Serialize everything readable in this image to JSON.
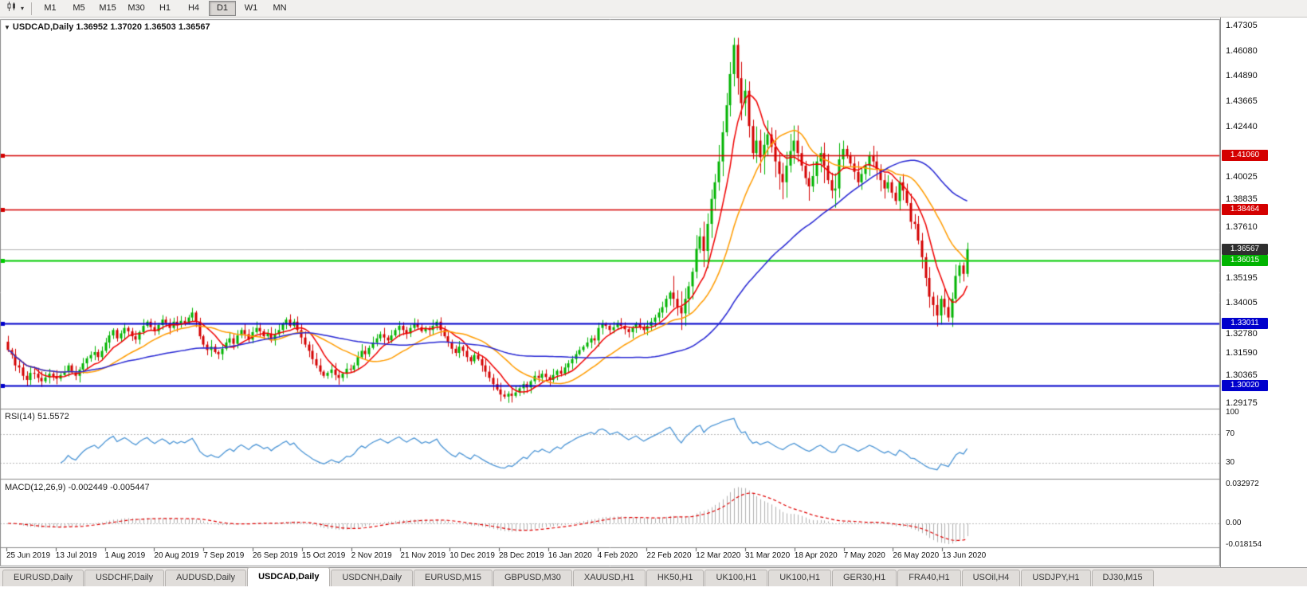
{
  "toolbar": {
    "chart_icon": "candlestick-chart",
    "dropdown_arrow": "▾",
    "timeframes": [
      "M1",
      "M5",
      "M15",
      "M30",
      "H1",
      "H4",
      "D1",
      "W1",
      "MN"
    ],
    "active_timeframe": "D1"
  },
  "chart": {
    "collapse_arrow": "▼",
    "title": "USDCAD,Daily",
    "ohlc": "1.36952 1.37020 1.36503 1.36567"
  },
  "price_axis": {
    "labels": [
      {
        "text": "1.47305",
        "price": 1.47305
      },
      {
        "text": "1.46080",
        "price": 1.4608
      },
      {
        "text": "1.44890",
        "price": 1.4489
      },
      {
        "text": "1.43665",
        "price": 1.43665
      },
      {
        "text": "1.42440",
        "price": 1.4244
      },
      {
        "text": "1.40025",
        "price": 1.40025
      },
      {
        "text": "1.38835",
        "price": 1.38835
      },
      {
        "text": "1.37610",
        "price": 1.3761
      },
      {
        "text": "1.35195",
        "price": 1.35195
      },
      {
        "text": "1.34005",
        "price": 1.34005
      },
      {
        "text": "1.32780",
        "price": 1.3278
      },
      {
        "text": "1.31590",
        "price": 1.3159
      },
      {
        "text": "1.30365",
        "price": 1.30365
      },
      {
        "text": "1.29175",
        "price": 1.29175
      }
    ],
    "badges": [
      {
        "text": "1.41060",
        "price": 1.4106,
        "color": "#d40000"
      },
      {
        "text": "1.38464",
        "price": 1.38464,
        "color": "#d40000"
      },
      {
        "text": "1.36567",
        "price": 1.36567,
        "color": "#2f2f2f"
      },
      {
        "text": "1.36015",
        "price": 1.36015,
        "color": "#00b400"
      },
      {
        "text": "1.33011",
        "price": 1.33011,
        "color": "#0000cc"
      },
      {
        "text": "1.30020",
        "price": 1.3002,
        "color": "#0000cc"
      }
    ]
  },
  "chart_data": {
    "type": "candlestick",
    "symbol": "USDCAD",
    "timeframe": "Daily",
    "ohlc_display": {
      "open": "1.36952",
      "high": "1.37020",
      "low": "1.36503",
      "close": "1.36567"
    },
    "price_range": [
      1.2894,
      1.4758
    ],
    "x_labels": [
      "25 Jun 2019",
      "13 Jul 2019",
      "1 Aug 2019",
      "20 Aug 2019",
      "7 Sep 2019",
      "26 Sep 2019",
      "15 Oct 2019",
      "2 Nov 2019",
      "21 Nov 2019",
      "10 Dec 2019",
      "28 Dec 2019",
      "16 Jan 2020",
      "4 Feb 2020",
      "22 Feb 2020",
      "12 Mar 2020",
      "31 Mar 2020",
      "18 Apr 2020",
      "7 May 2020",
      "26 May 2020",
      "13 Jun 2020"
    ],
    "closes": [
      1.3172,
      1.315,
      1.3098,
      1.3088,
      1.3048,
      1.3028,
      1.3062,
      1.3058,
      1.3038,
      1.3022,
      1.304,
      1.3058,
      1.3044,
      1.3034,
      1.3052,
      1.3068,
      1.3098,
      1.3064,
      1.3048,
      1.3078,
      1.3108,
      1.3132,
      1.3148,
      1.3162,
      1.3138,
      1.3168,
      1.3208,
      1.3242,
      1.3268,
      1.3228,
      1.3252,
      1.3278,
      1.3262,
      1.3238,
      1.3222,
      1.3258,
      1.3288,
      1.3308,
      1.3282,
      1.3262,
      1.3292,
      1.3318,
      1.3302,
      1.3278,
      1.3308,
      1.3292,
      1.3312,
      1.3302,
      1.3328,
      1.3352,
      1.3308,
      1.3238,
      1.3198,
      1.3172,
      1.3188,
      1.3162,
      1.3152,
      1.3178,
      1.3208,
      1.3228,
      1.3202,
      1.3242,
      1.3268,
      1.3248,
      1.3222,
      1.3258,
      1.3278,
      1.3262,
      1.3238,
      1.3252,
      1.3218,
      1.3248,
      1.3268,
      1.3298,
      1.3318,
      1.3288,
      1.3308,
      1.3268,
      1.3232,
      1.3198,
      1.3168,
      1.3128,
      1.3098,
      1.3068,
      1.3048,
      1.3062,
      1.3078,
      1.3052,
      1.3038,
      1.3058,
      1.3082,
      1.3078,
      1.3098,
      1.3138,
      1.3168,
      1.3152,
      1.3182,
      1.3208,
      1.3228,
      1.3248,
      1.3232,
      1.3218,
      1.3242,
      1.3268,
      1.3288,
      1.3268,
      1.3252,
      1.3278,
      1.3298,
      1.3282,
      1.3262,
      1.3278,
      1.3268,
      1.3288,
      1.3308,
      1.3268,
      1.3238,
      1.3208,
      1.3178,
      1.3158,
      1.3188,
      1.3168,
      1.3138,
      1.3118,
      1.3148,
      1.3128,
      1.3098,
      1.3068,
      1.3038,
      1.3008,
      1.2982,
      1.2958,
      1.2948,
      1.2962,
      1.2952,
      1.2968,
      1.2988,
      1.3008,
      1.2992,
      1.3022,
      1.3048,
      1.3038,
      1.3058,
      1.3042,
      1.3028,
      1.3052,
      1.3072,
      1.3058,
      1.3088,
      1.3108,
      1.3128,
      1.3152,
      1.3172,
      1.3188,
      1.3208,
      1.3228,
      1.3218,
      1.3278,
      1.3298,
      1.3288,
      1.3268,
      1.3282,
      1.3302,
      1.3288,
      1.3272,
      1.3258,
      1.3278,
      1.3298,
      1.3282,
      1.3268,
      1.3288,
      1.3308,
      1.3328,
      1.3352,
      1.3378,
      1.3418,
      1.3448,
      1.3418,
      1.3378,
      1.3348,
      1.3418,
      1.3478,
      1.3548,
      1.3658,
      1.3718,
      1.3648,
      1.3778,
      1.3898,
      1.3978,
      1.4078,
      1.4218,
      1.4348,
      1.4498,
      1.4638,
      1.4478,
      1.4358,
      1.4418,
      1.4248,
      1.4118,
      1.4178,
      1.4098,
      1.4158,
      1.4208,
      1.4148,
      1.4078,
      1.4018,
      1.3978,
      1.4058,
      1.4128,
      1.4178,
      1.4118,
      1.4058,
      1.3998,
      1.3958,
      1.4008,
      1.4078,
      1.4118,
      1.4058,
      1.3988,
      1.3938,
      1.3948,
      1.4088,
      1.4138,
      1.4108,
      1.4068,
      1.4028,
      1.3978,
      1.4018,
      1.4058,
      1.4108,
      1.4078,
      1.4038,
      1.3988,
      1.3948,
      1.3978,
      1.3928,
      1.3888,
      1.3978,
      1.3938,
      1.3878,
      1.3788,
      1.3778,
      1.3698,
      1.3618,
      1.3518,
      1.3428,
      1.3388,
      1.3338,
      1.3418,
      1.3378,
      1.3328,
      1.3418,
      1.3528,
      1.3578,
      1.3538,
      1.36567
    ],
    "up_color": "#00b400",
    "down_color": "#d40000",
    "hlines": [
      {
        "price": 1.4106,
        "color": "#d40000",
        "width": 1.5
      },
      {
        "price": 1.38464,
        "color": "#d40000",
        "width": 1.5
      },
      {
        "price": 1.36015,
        "color": "#00cc00",
        "width": 2
      },
      {
        "price": 1.33011,
        "color": "#0000cc",
        "width": 2
      },
      {
        "price": 1.3002,
        "color": "#0000cc",
        "width": 2
      }
    ],
    "bid_line": {
      "price": 1.36567,
      "color": "#b2b2b2"
    },
    "moving_averages": [
      {
        "period": 8,
        "color": "#f00000"
      },
      {
        "period": 20,
        "color": "#ff9c00"
      },
      {
        "period": 55,
        "color": "#2828d4"
      }
    ],
    "indicators": {
      "rsi": {
        "display": "RSI(14) 51.5572",
        "period": 14,
        "value": 51.5572,
        "color": "#4d96d6",
        "levels": [
          70,
          30
        ],
        "axis_labels": [
          {
            "text": "100",
            "value": 100
          },
          {
            "text": "70",
            "value": 70
          },
          {
            "text": "30",
            "value": 30
          }
        ]
      },
      "macd": {
        "display": "MACD(12,26,9) -0.002449 -0.005447",
        "fast": 12,
        "slow": 26,
        "signal": 9,
        "macd_value": -0.002449,
        "signal_value": -0.005447,
        "histogram_color": "#b0b0b0",
        "signal_color": "#e00000",
        "range": [
          -0.018154,
          0.032972
        ],
        "axis_labels": [
          {
            "text": "0.032972",
            "value": 0.032972
          },
          {
            "text": "0.00",
            "value": 0
          },
          {
            "text": "-0.018154",
            "value": -0.018154
          }
        ]
      }
    }
  },
  "tab_bar": {
    "tabs": [
      "EURUSD,Daily",
      "USDCHF,Daily",
      "AUDUSD,Daily",
      "USDCAD,Daily",
      "USDCNH,Daily",
      "EURUSD,M15",
      "GBPUSD,M30",
      "XAUUSD,H1",
      "HK50,H1",
      "UK100,H1",
      "UK100,H1",
      "GER30,H1",
      "FRA40,H1",
      "USOil,H4",
      "USDJPY,H1",
      "DJ30,M15"
    ],
    "active_index": 3
  }
}
